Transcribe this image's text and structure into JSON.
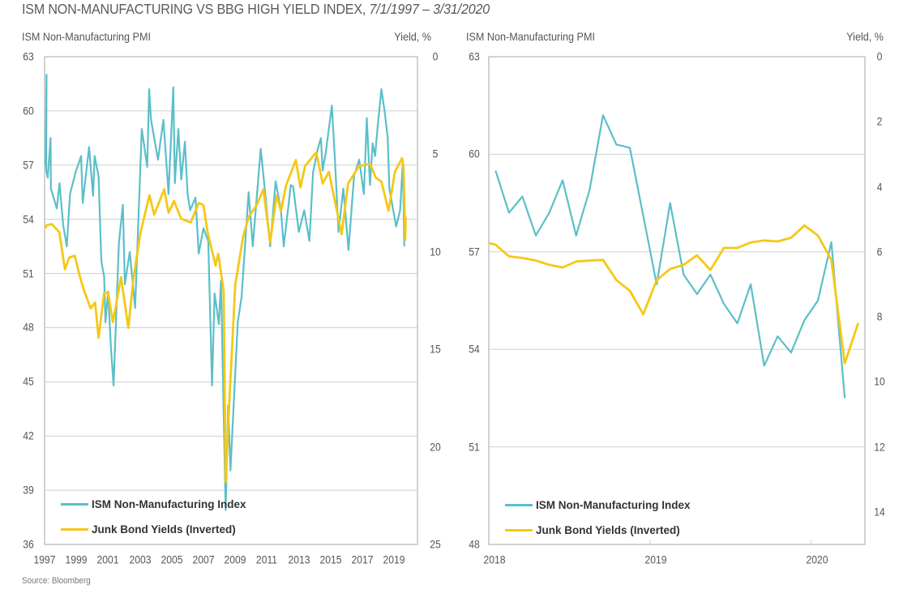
{
  "title": {
    "main": "ISM NON-MANUFACTURING VS BBG HIGH YIELD INDEX,",
    "range": "7/1/1997 – 3/31/2020"
  },
  "source": "Source: Bloomberg",
  "colors": {
    "ism": "#5bbfc9",
    "yield": "#f5c816",
    "grid": "#cfcfcf"
  },
  "chart_data": [
    {
      "type": "line",
      "title": "ISM Non-Manufacturing vs BBG High Yield Index, 7/1/1997 – 3/31/2020",
      "ylabel": "ISM Non-Manufacturing PMI",
      "y2label": "Yield, %",
      "ylim": [
        36,
        63
      ],
      "y2lim": [
        25,
        0
      ],
      "y2_inverted": true,
      "yticks": [
        "36",
        "39",
        "42",
        "45",
        "48",
        "51",
        "54",
        "57",
        "60",
        "63"
      ],
      "y2ticks": [
        "0",
        "5",
        "10",
        "15",
        "20",
        "25"
      ],
      "xlim": [
        1997.5,
        2020.97
      ],
      "xticks": [
        "1997",
        "1999",
        "2001",
        "2003",
        "2005",
        "2007",
        "2009",
        "2011",
        "2013",
        "2015",
        "2017",
        "2019"
      ],
      "grid": true,
      "legend": "bottom-left",
      "series": [
        {
          "name": "ISM Non-Manufacturing Index",
          "axis": "left",
          "x": [
            1997.55,
            1997.62,
            1997.6,
            1997.7,
            1997.88,
            1997.9,
            1998.27,
            1998.44,
            1998.67,
            1998.9,
            1999.1,
            1999.45,
            1999.8,
            1999.9,
            2000.3,
            2000.55,
            2000.65,
            2000.9,
            2001.07,
            2001.25,
            2001.33,
            2001.5,
            2001.67,
            2001.84,
            2002.18,
            2002.43,
            2002.55,
            2002.86,
            2003.2,
            2003.62,
            2003.96,
            2004.08,
            2004.2,
            2004.64,
            2004.98,
            2005.3,
            2005.6,
            2005.7,
            2005.92,
            2006.1,
            2006.33,
            2006.5,
            2006.66,
            2007.0,
            2007.2,
            2007.5,
            2007.8,
            2008.04,
            2008.2,
            2008.47,
            2008.6,
            2008.9,
            2009.05,
            2009.2,
            2009.66,
            2009.9,
            2010.34,
            2010.6,
            2011.1,
            2011.36,
            2011.7,
            2012.04,
            2012.38,
            2012.55,
            2013.0,
            2013.15,
            2013.5,
            2013.84,
            2014.17,
            2014.4,
            2014.7,
            2014.9,
            2015.0,
            2015.2,
            2015.58,
            2015.78,
            2016.0,
            2016.3,
            2016.63,
            2016.98,
            2017.3,
            2017.6,
            2017.78,
            2017.98,
            2018.15,
            2018.3,
            2018.46,
            2018.7,
            2018.9,
            2019.1,
            2019.2,
            2019.63,
            2019.88,
            2020.05,
            2020.14
          ],
          "values": [
            57.0,
            62.0,
            56.7,
            56.3,
            58.5,
            55.7,
            54.6,
            56.0,
            53.7,
            52.5,
            55.4,
            56.6,
            57.5,
            54.9,
            58.0,
            55.3,
            57.5,
            56.4,
            51.7,
            50.8,
            48.3,
            50.0,
            47.0,
            44.8,
            52.7,
            54.8,
            50.4,
            52.2,
            49.1,
            59.0,
            56.9,
            61.2,
            59.5,
            57.3,
            59.5,
            55.4,
            61.3,
            56.0,
            59.0,
            56.2,
            58.3,
            55.4,
            54.5,
            55.2,
            52.1,
            53.5,
            52.8,
            44.8,
            49.9,
            48.2,
            50.6,
            37.9,
            43.7,
            40.1,
            48.3,
            49.7,
            55.5,
            52.5,
            57.9,
            55.7,
            52.5,
            56.1,
            54.5,
            52.5,
            55.9,
            55.8,
            53.3,
            54.5,
            52.8,
            56.6,
            57.9,
            58.5,
            56.7,
            57.7,
            60.3,
            57.2,
            53.3,
            55.7,
            52.3,
            56.4,
            57.3,
            55.4,
            59.6,
            55.9,
            58.2,
            57.5,
            59.1,
            61.2,
            60.0,
            58.5,
            55.7,
            53.6,
            54.5,
            57.2,
            52.5
          ]
        },
        {
          "name": "Junk Bond Yields (Inverted)",
          "axis": "right",
          "x": [
            1997.55,
            1997.6,
            1997.95,
            1998.43,
            1998.78,
            1999.05,
            1999.4,
            1999.7,
            1999.95,
            2000.4,
            2000.68,
            2000.9,
            2001.25,
            2001.5,
            2001.8,
            2002.31,
            2002.77,
            2003.1,
            2003.54,
            2004.1,
            2004.4,
            2005.03,
            2005.3,
            2005.65,
            2006.1,
            2006.7,
            2007.2,
            2007.5,
            2007.76,
            2008.26,
            2008.43,
            2008.77,
            2008.9,
            2009.1,
            2009.5,
            2010.0,
            2010.35,
            2010.85,
            2011.27,
            2011.7,
            2012.1,
            2012.38,
            2012.7,
            2013.31,
            2013.6,
            2013.9,
            2014.4,
            2014.6,
            2015.0,
            2015.4,
            2015.9,
            2016.2,
            2016.6,
            2017.3,
            2018.0,
            2018.35,
            2018.7,
            2019.15,
            2019.55,
            2020.0,
            2020.1,
            2020.2,
            2020.23
          ],
          "values": [
            8.8,
            8.65,
            8.58,
            8.99,
            10.9,
            10.3,
            10.2,
            11.2,
            11.9,
            12.9,
            12.6,
            14.4,
            12.1,
            12.1,
            13.6,
            11.3,
            13.9,
            11.3,
            9.0,
            7.1,
            8.1,
            6.8,
            8.0,
            7.4,
            8.3,
            8.5,
            7.5,
            7.6,
            9.0,
            10.7,
            10.1,
            12.0,
            21.8,
            18.1,
            11.7,
            9.2,
            8.2,
            7.6,
            6.8,
            9.5,
            7.1,
            7.9,
            6.6,
            5.3,
            6.7,
            5.6,
            5.1,
            4.9,
            6.5,
            5.9,
            7.9,
            9.1,
            6.5,
            5.6,
            5.5,
            6.2,
            6.4,
            7.9,
            5.9,
            5.2,
            5.7,
            9.4,
            8.2
          ]
        }
      ]
    },
    {
      "type": "line",
      "ylabel": "ISM Non-Manufacturing PMI",
      "y2label": "Yield, %",
      "ylim": [
        48,
        63
      ],
      "y2lim": [
        15,
        0
      ],
      "y2_inverted": true,
      "yticks": [
        "48",
        "51",
        "54",
        "57",
        "60",
        "63"
      ],
      "y2ticks": [
        "0",
        "2",
        "4",
        "6",
        "8",
        "10",
        "12",
        "14"
      ],
      "x_unit": "months since Jan 2018",
      "xlim": [
        0,
        28
      ],
      "xticks": [
        {
          "label": "2018",
          "x": 0
        },
        {
          "label": "2019",
          "x": 12
        },
        {
          "label": "2020",
          "x": 24
        }
      ],
      "grid": true,
      "legend": "bottom-left",
      "series": [
        {
          "name": "ISM Non-Manufacturing Index",
          "axis": "left",
          "x": [
            0.5,
            1.5,
            2.5,
            3.5,
            4.5,
            5.5,
            6.5,
            7.5,
            8.5,
            9.5,
            10.5,
            11.5,
            12.5,
            13.5,
            14.5,
            15.5,
            16.5,
            17.5,
            18.5,
            19.5,
            20.5,
            21.5,
            22.5,
            23.5,
            24.5,
            25.5,
            26.5
          ],
          "values": [
            59.5,
            58.2,
            58.7,
            57.5,
            58.2,
            59.2,
            57.5,
            58.9,
            61.2,
            60.3,
            60.2,
            58.1,
            56.0,
            58.5,
            56.3,
            55.7,
            56.3,
            55.4,
            54.8,
            56.0,
            53.5,
            54.4,
            53.9,
            54.9,
            55.5,
            57.3,
            52.5
          ]
        },
        {
          "name": "Junk Bond Yields (Inverted)",
          "axis": "right",
          "x": [
            0,
            0.5,
            1.5,
            2.5,
            3.5,
            4.5,
            5.5,
            6.5,
            7.5,
            8.5,
            9.5,
            10.5,
            11.5,
            12.5,
            13.5,
            14.5,
            15.5,
            16.5,
            17.5,
            18.5,
            19.5,
            20.5,
            21.5,
            22.5,
            23.5,
            24.5,
            25.5,
            26.5,
            27.5
          ],
          "values": [
            5.73,
            5.78,
            6.14,
            6.19,
            6.27,
            6.4,
            6.48,
            6.3,
            6.27,
            6.25,
            6.87,
            7.2,
            7.92,
            6.87,
            6.53,
            6.4,
            6.11,
            6.56,
            5.88,
            5.88,
            5.71,
            5.65,
            5.68,
            5.57,
            5.19,
            5.5,
            6.25,
            9.43,
            8.19
          ]
        }
      ]
    }
  ]
}
